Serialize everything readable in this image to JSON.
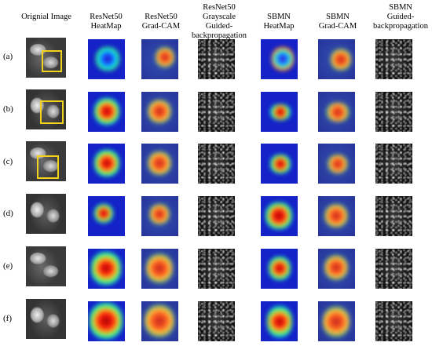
{
  "headers": [
    [
      "Orignial Image"
    ],
    [
      "ResNet50",
      "HeatMap"
    ],
    [
      "ResNet50",
      "Grad-CAM"
    ],
    [
      "ResNet50",
      "Grayscale Guided-",
      "backpropagation"
    ],
    [
      "SBMN",
      "HeatMap"
    ],
    [
      "SBMN",
      "Grad-CAM"
    ],
    [
      "SBMN",
      "Guided-",
      "backpropagation"
    ]
  ],
  "rows": [
    "(a)",
    "(b)",
    "(c)",
    "(d)",
    "(e)",
    "(f)"
  ],
  "colors": {
    "heat_background": "#1422c8",
    "bounding_box": "#f2d21b"
  }
}
